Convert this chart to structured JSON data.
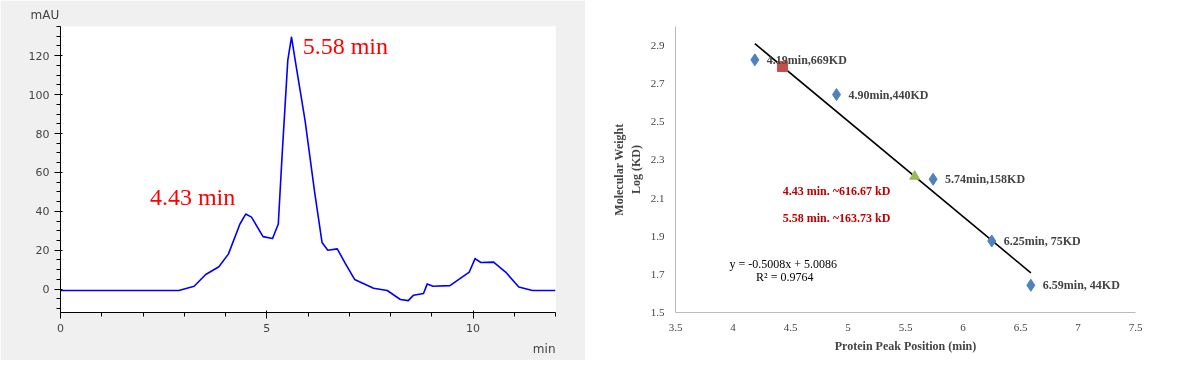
{
  "chart_data": [
    {
      "type": "line",
      "xlabel": "min",
      "ylabel": "mAU",
      "xlim": [
        0,
        12
      ],
      "ylim": [
        -12,
        135
      ],
      "xticks": [
        0,
        5,
        10
      ],
      "yticks": [
        0,
        20,
        40,
        60,
        80,
        100,
        120
      ],
      "grid": false,
      "marker": "none",
      "line_style": "solid",
      "series": [
        {
          "color": "#0000ff",
          "x": [
            0,
            2.87,
            3.24,
            3.52,
            3.84,
            4.07,
            4.35,
            4.49,
            4.63,
            4.91,
            5.14,
            5.28,
            5.37,
            5.51,
            5.6,
            5.69,
            5.93,
            6.16,
            6.34,
            6.48,
            6.71,
            6.9,
            7.13,
            7.59,
            7.92,
            8.24,
            8.43,
            8.56,
            8.8,
            8.89,
            9.03,
            9.44,
            9.91,
            10.05,
            10.19,
            10.5,
            10.79,
            11.11,
            11.44,
            12
          ],
          "values": [
            -0.7,
            -0.7,
            1.5,
            7.5,
            11.5,
            18,
            33.5,
            38.6,
            37,
            27,
            26,
            33.5,
            68,
            117.6,
            129.5,
            117.6,
            86.5,
            50,
            24,
            20,
            20.7,
            13.4,
            5,
            0.5,
            -0.7,
            -5.3,
            -5.9,
            -3.1,
            -2.2,
            2.7,
            1.5,
            1.8,
            8.8,
            15.7,
            13.7,
            13.9,
            8.8,
            1.1,
            -0.7,
            -0.7
          ]
        }
      ],
      "annotations": [
        {
          "text": "4.43 min",
          "x": 4.43,
          "y": 38.6
        },
        {
          "text": "5.58 min",
          "x": 5.58,
          "y": 129.5
        }
      ]
    },
    {
      "type": "scatter",
      "xlabel": "Protein Peak Position (min)",
      "ylabel": "Molecular Weight\nLog (KD)",
      "xlim": [
        3.5,
        7.5
      ],
      "ylim": [
        1.5,
        3.0
      ],
      "xticks": [
        3.5,
        4,
        4.5,
        5,
        5.5,
        6,
        6.5,
        7,
        7.5
      ],
      "yticks": [
        1.5,
        1.7,
        1.9,
        2.1,
        2.3,
        2.5,
        2.7,
        2.9
      ],
      "grid": false,
      "series": [
        {
          "type": "scatter",
          "marker": "diamond",
          "color": "#4f81bd",
          "x": [
            4.19,
            4.9,
            5.74,
            6.25,
            6.59
          ],
          "values": [
            2.825,
            2.643,
            2.199,
            1.875,
            1.643
          ],
          "value_labels": [
            "4.19min,669KD",
            "4.90min,440KD",
            "5.74min,158KD",
            "6.25min, 75KD",
            "6.59min, 44KD"
          ]
        },
        {
          "type": "scatter",
          "marker": "square",
          "color": "#c0504d",
          "x": [
            4.43
          ],
          "values": [
            2.79
          ]
        },
        {
          "type": "scatter",
          "marker": "triangle",
          "color": "#9bbb59",
          "x": [
            5.58
          ],
          "values": [
            2.214
          ]
        },
        {
          "type": "line",
          "marker": "none",
          "line_style": "solid",
          "color": "#000000",
          "x": [
            4.19,
            6.59
          ],
          "values": [
            2.91,
            1.708
          ]
        }
      ],
      "annotations": [
        "4.43 min. ~616.67 kD",
        "5.58 min. ~163.73 kD",
        "y = -0.5008x  + 5.0086",
        "R² = 0.9764"
      ]
    }
  ]
}
